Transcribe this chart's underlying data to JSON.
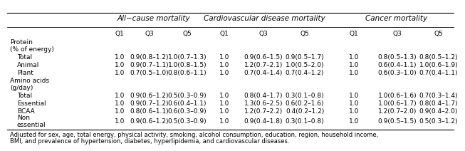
{
  "col_headers": {
    "all_cause": "All−cause mortality",
    "cvd": "Cardiovascular disease mortality",
    "cancer": "Cancer mortality"
  },
  "q_labels": [
    "Q1",
    "Q3",
    "Q5"
  ],
  "data": {
    "all_cause": {
      "prot_Total": [
        "1.0",
        "0.9(0.8–1.2)",
        "1.0(0.7–1.3)"
      ],
      "prot_Animal": [
        "1.0",
        "0.9(0.7–1.1)",
        "1.0(0.8–1.5)"
      ],
      "prot_Plant": [
        "1.0",
        "0.7(0.5–1.0)",
        "0.8(0.6–1.1)"
      ],
      "aa_Total": [
        "1.0",
        "0.9(0.6–1.2)",
        "0.5(0.3–0.9)"
      ],
      "aa_Essential": [
        "1.0",
        "0.9(0.7–1.2)",
        "0.6(0.4–1.1)"
      ],
      "aa_BCAA": [
        "1.0",
        "0.8(0.6–1.1)",
        "0.6(0.3–0.9)"
      ],
      "aa_NonEss": [
        "1.0",
        "0.9(0.6–1.2)",
        "0.5(0.3–0.9)"
      ]
    },
    "cvd": {
      "prot_Total": [
        "1.0",
        "0.9(0.6–1.5)",
        "0.9(0.5–1.7)"
      ],
      "prot_Animal": [
        "1.0",
        "1.2(0.7–2.1)",
        "1.0(0.5–2.0)"
      ],
      "prot_Plant": [
        "1.0",
        "0.7(0.4–1.4)",
        "0.7(0.4–1.2)"
      ],
      "aa_Total": [
        "1.0",
        "0.8(0.4–1.7)",
        "0.3(0.1–0.8)"
      ],
      "aa_Essential": [
        "1.0",
        "1.3(0.6–2.5)",
        "0.6(0.2–1.6)"
      ],
      "aa_BCAA": [
        "1.0",
        "1.2(0.7–2.2)",
        "0.4(0.2–1.2)"
      ],
      "aa_NonEss": [
        "1.0",
        "0.9(0.4–1.8)",
        "0.3(0.1–0.8)"
      ]
    },
    "cancer": {
      "prot_Total": [
        "1.0",
        "0.8(0.5–1.3)",
        "0.8(0.5–1.2)"
      ],
      "prot_Animal": [
        "1.0",
        "0.6(0.4–1.1)",
        "1.0(0.6–1.9)"
      ],
      "prot_Plant": [
        "1.0",
        "0.6(0.3–1.0)",
        "0.7(0.4–1.1)"
      ],
      "aa_Total": [
        "1.0",
        "1.0(0.6–1.6)",
        "0.7(0.3–1.4)"
      ],
      "aa_Essential": [
        "1.0",
        "1.0(0.6–1.7)",
        "0.8(0.4–1.7)"
      ],
      "aa_BCAA": [
        "1.0",
        "1.2(0.7–2.0)",
        "0.9(0.4–2.0)"
      ],
      "aa_NonEss": [
        "1.0",
        "0.9(0.5–1.5)",
        "0.5(0.3–1.2)"
      ]
    }
  },
  "footnote1": "Adjusted for sex, age, total energy, physical activity, smoking, alcohol consumption, education, region, household income,",
  "footnote2": "BMI, and prevalence of hypertension, diabetes, hyperlipidemia, and cardiovascular diseases.",
  "bg_color": "#ffffff",
  "font_size": 6.5,
  "header_font_size": 7.5,
  "footnote_font_size": 6.0
}
